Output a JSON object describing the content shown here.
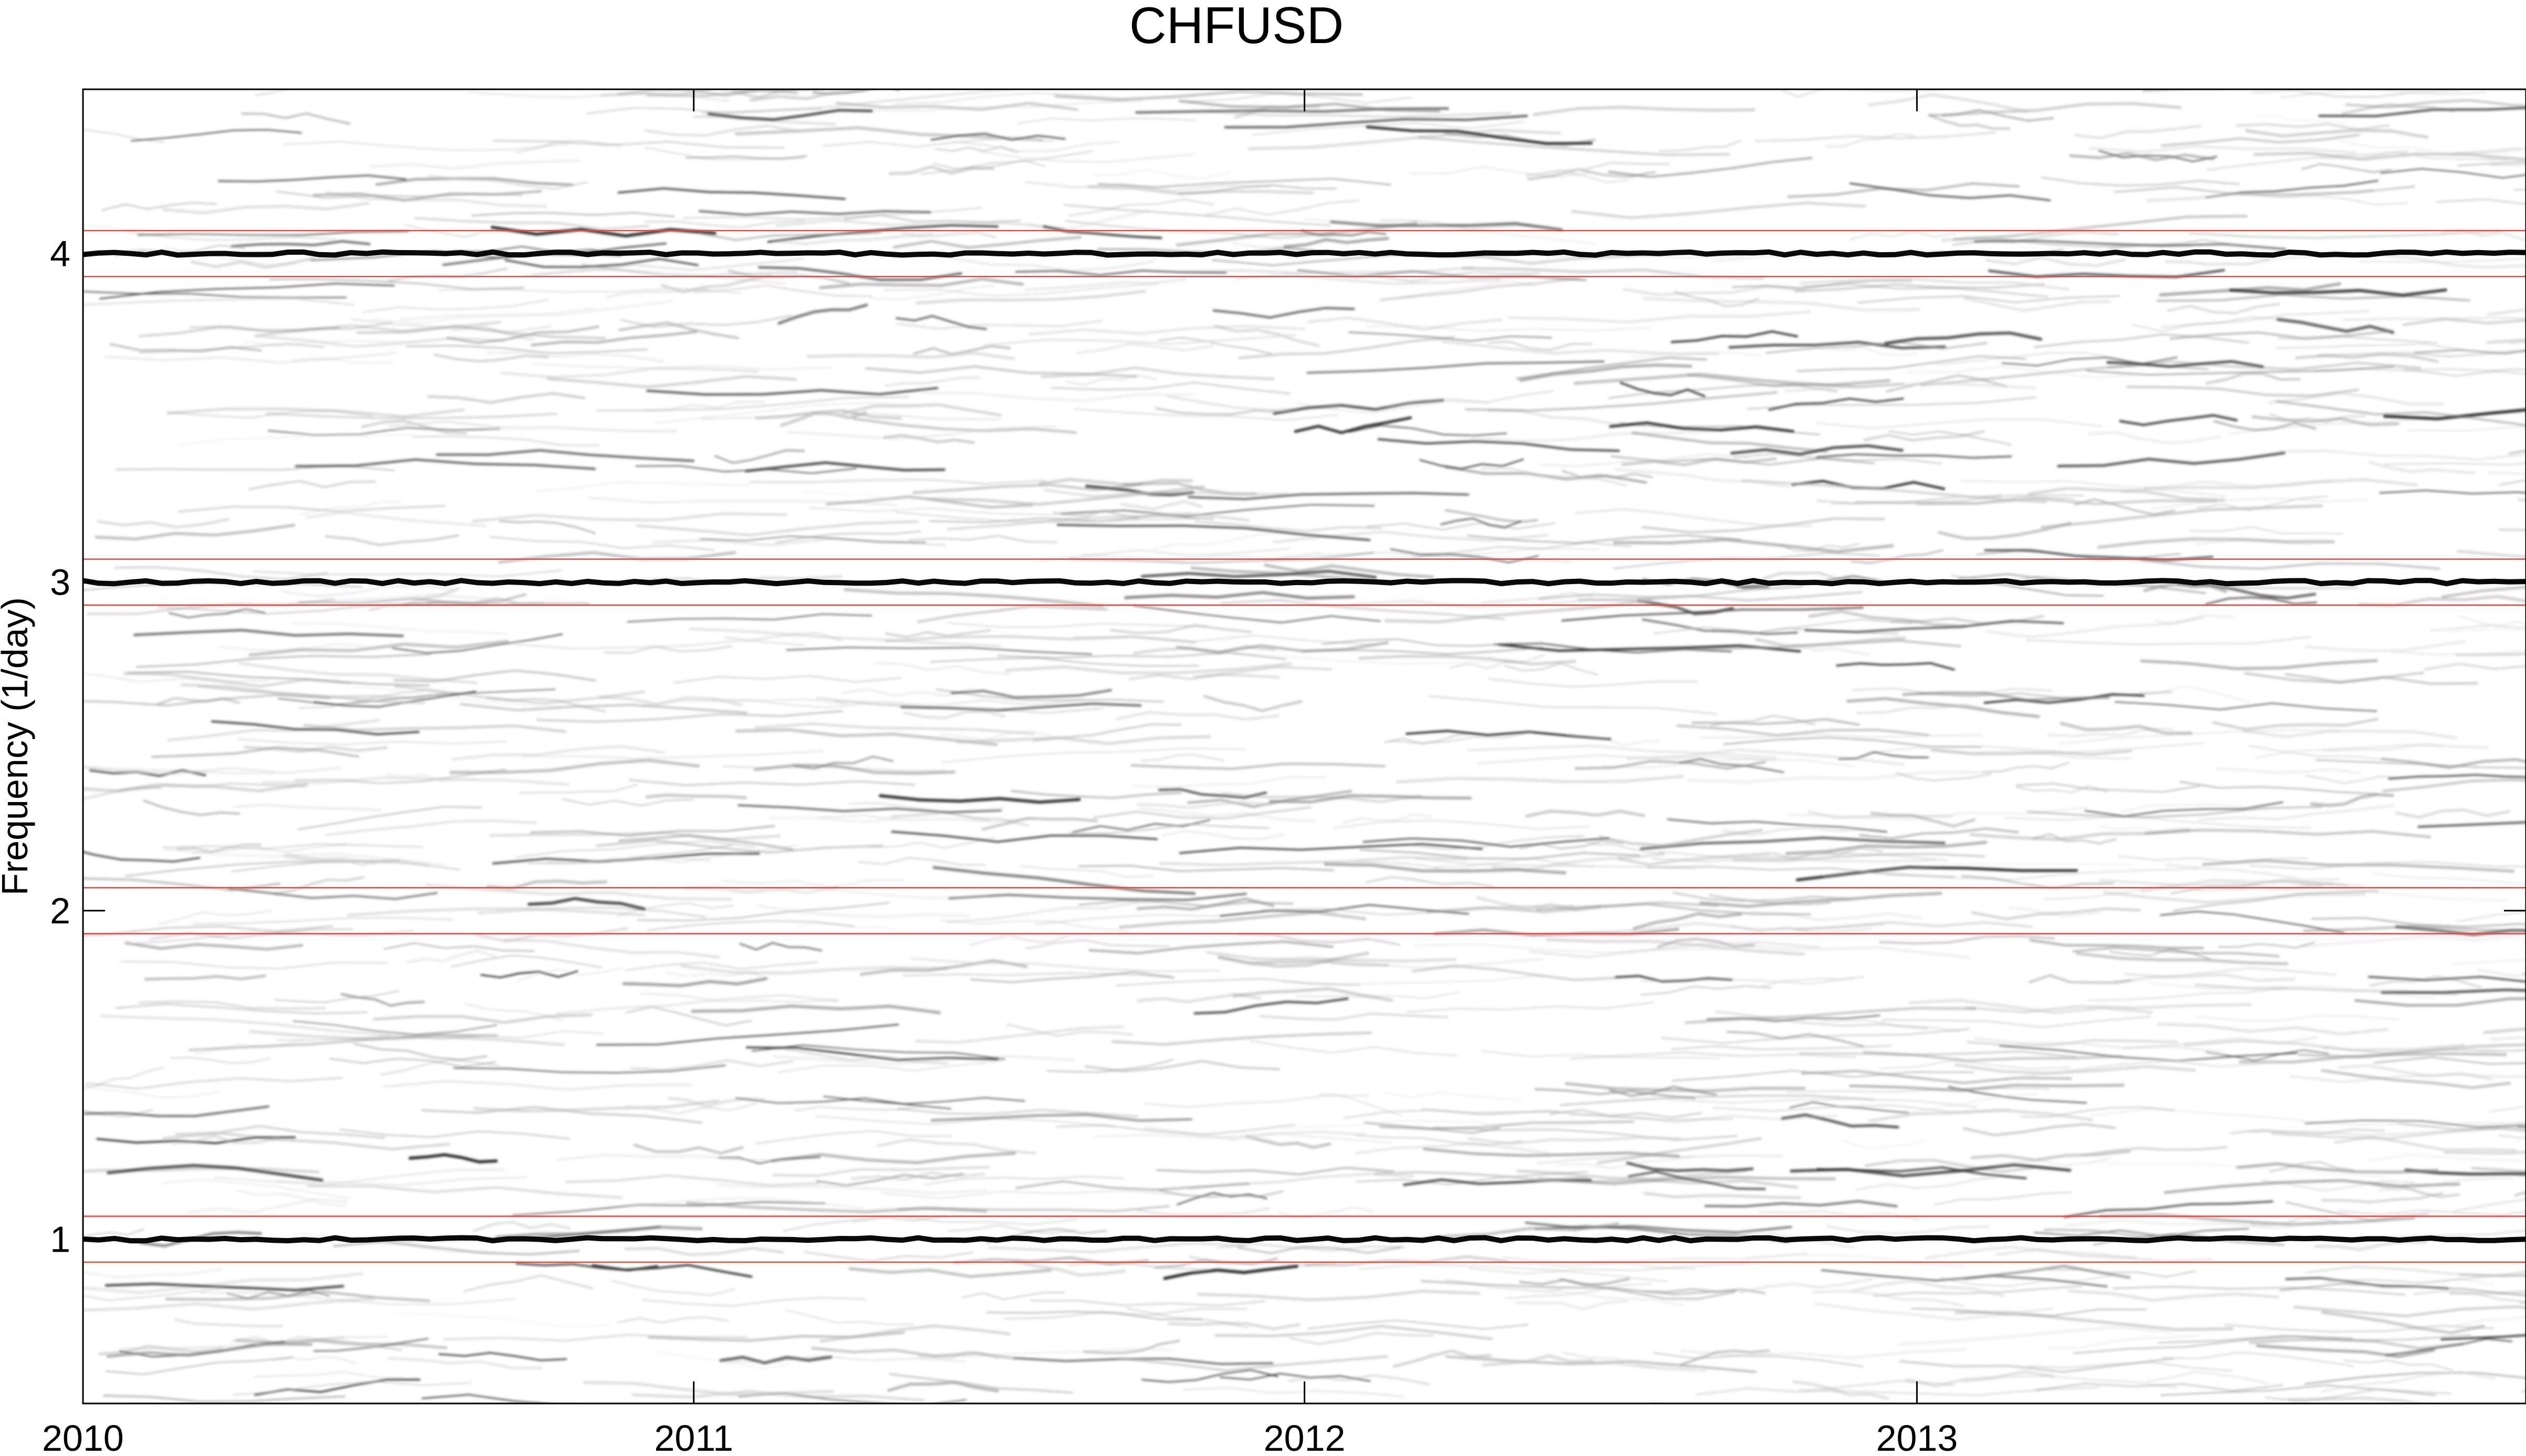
{
  "chart_data": {
    "type": "heatmap",
    "title": "CHFUSD",
    "xlabel": "",
    "ylabel": "Frequency (1/day)",
    "x_ticks": [
      "2010",
      "2011",
      "2012",
      "2013"
    ],
    "y_ticks": [
      "1",
      "2",
      "3",
      "4"
    ],
    "xlim": [
      "2010-01-01",
      "2013-12-31"
    ],
    "ylim": [
      0.5,
      4.5
    ],
    "colormap": "gray (white = low power, black = high power)",
    "grid": false,
    "legend": "none",
    "dominant_ridges": [
      {
        "frequency": 1.0,
        "strength": "strong"
      },
      {
        "frequency": 3.0,
        "strength": "strong"
      },
      {
        "frequency": 4.0,
        "strength": "strong"
      }
    ],
    "reference_bands": [
      {
        "center": 1,
        "lower": 0.93,
        "upper": 1.07,
        "color": "#e8453c"
      },
      {
        "center": 2,
        "lower": 1.93,
        "upper": 2.07,
        "color": "#e8453c"
      },
      {
        "center": 3,
        "lower": 2.93,
        "upper": 3.07,
        "color": "#e8453c"
      },
      {
        "center": 4,
        "lower": 3.93,
        "upper": 4.07,
        "color": "#e8453c"
      }
    ]
  }
}
